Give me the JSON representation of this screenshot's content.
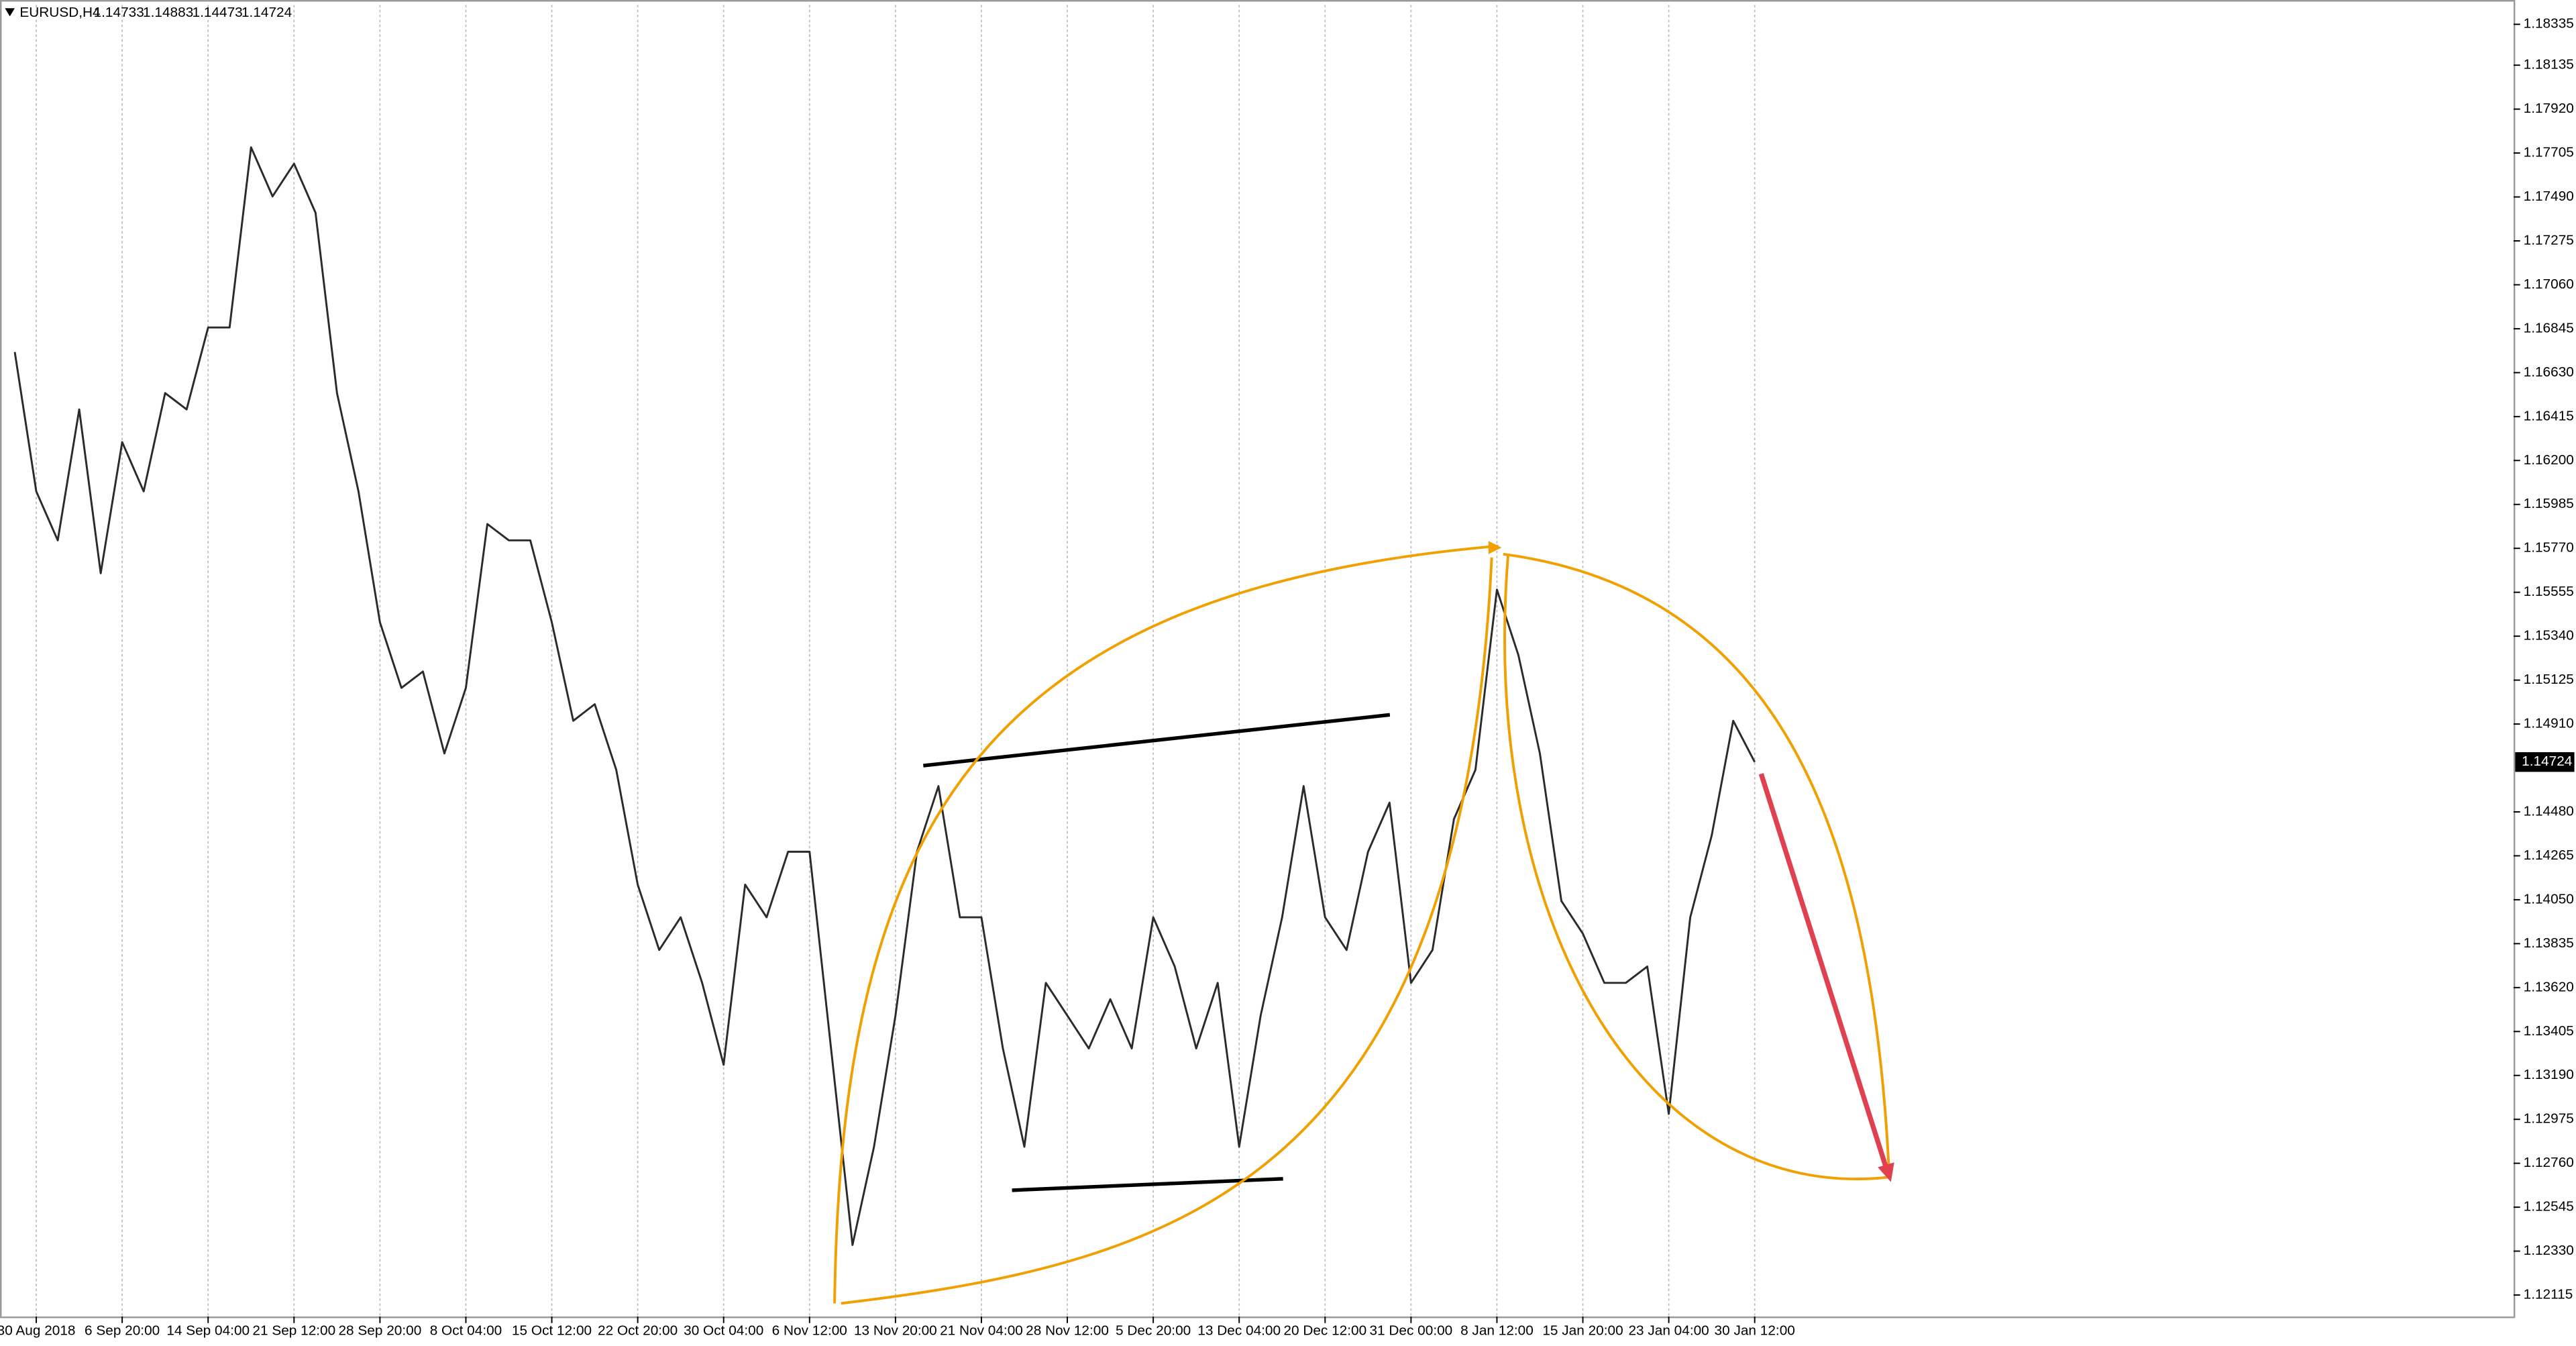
{
  "chart_data": {
    "type": "line",
    "title": "EURUSD,H4",
    "quote": [
      1.14733,
      1.14883,
      1.14473,
      1.14724
    ],
    "current_price": 1.14724,
    "current_price_color": "#000000",
    "categories": [
      null,
      "30 Aug 2018",
      null,
      null,
      null,
      "6 Sep 20:00",
      null,
      null,
      null,
      "14 Sep 04:00",
      null,
      null,
      null,
      "21 Sep 12:00",
      null,
      null,
      null,
      "28 Sep 20:00",
      null,
      null,
      null,
      "8 Oct 04:00",
      null,
      null,
      null,
      "15 Oct 12:00",
      null,
      null,
      null,
      "22 Oct 20:00",
      null,
      null,
      null,
      "30 Oct 04:00",
      null,
      null,
      null,
      "6 Nov 12:00",
      null,
      null,
      null,
      "13 Nov 20:00",
      null,
      null,
      null,
      "21 Nov 04:00",
      null,
      null,
      null,
      "28 Nov 12:00",
      null,
      null,
      null,
      "5 Dec 20:00",
      null,
      null,
      null,
      "13 Dec 04:00",
      null,
      null,
      null,
      "20 Dec 12:00",
      null,
      null,
      null,
      "31 Dec 00:00",
      null,
      null,
      null,
      "8 Jan 12:00",
      null,
      null,
      null,
      "15 Jan 20:00",
      null,
      null,
      null,
      "23 Jan 04:00",
      null,
      null,
      null,
      "30 Jan 12:00"
    ],
    "series": [
      {
        "name": "EURUSD,H4",
        "color": "#2b2b2b",
        "values": [
          1.16731,
          1.16049,
          1.15809,
          1.1645,
          1.15648,
          1.1629,
          1.16049,
          1.1653,
          1.1645,
          1.16851,
          1.16851,
          1.17733,
          1.17493,
          1.17653,
          1.17413,
          1.1653,
          1.16049,
          1.15408,
          1.15087,
          1.15167,
          1.14766,
          1.15087,
          1.15889,
          1.15809,
          1.15809,
          1.15408,
          1.14926,
          1.15007,
          1.14686,
          1.14124,
          1.13804,
          1.13964,
          1.13643,
          1.13242,
          1.14124,
          1.13964,
          1.14285,
          1.14285,
          1.13322,
          1.1236,
          1.12841,
          1.13483,
          1.14285,
          1.14606,
          1.13964,
          1.13964,
          1.13322,
          1.12841,
          1.13643,
          1.13483,
          1.13322,
          1.13563,
          1.13322,
          1.13964,
          1.13723,
          1.13322,
          1.13643,
          1.12841,
          1.13483,
          1.13964,
          1.14606,
          1.13964,
          1.13804,
          1.14285,
          1.14525,
          1.13643,
          1.13804,
          1.14445,
          1.14686,
          1.15568,
          1.15247,
          1.14766,
          1.14044,
          1.13884,
          1.13643,
          1.13643,
          1.13723,
          1.13002,
          1.13964,
          1.14365,
          1.14926,
          1.14724
        ]
      }
    ],
    "ylim": [
      1.1201,
      1.1843
    ],
    "yticks": [
      1.12115,
      {
        "value": 1.1233,
        "label": "1.12330"
      },
      1.12545,
      {
        "value": 1.1276,
        "label": "1.12760"
      },
      1.12975,
      {
        "value": 1.1319,
        "label": "1.13190"
      },
      1.13405,
      {
        "value": 1.1362,
        "label": "1.13620"
      },
      1.13835,
      {
        "value": 1.1405,
        "label": "1.14050"
      },
      1.14265,
      {
        "value": 1.1448,
        "label": "1.14480"
      },
      {
        "value": 1.1491,
        "label": "1.14910"
      },
      1.15125,
      {
        "value": 1.1534,
        "label": "1.15340"
      },
      1.15555,
      {
        "value": 1.1577,
        "label": "1.15770"
      },
      1.15985,
      {
        "value": 1.162,
        "label": "1.16200"
      },
      1.16415,
      {
        "value": 1.1663,
        "label": "1.16630"
      },
      1.16845,
      {
        "value": 1.1706,
        "label": "1.17060"
      },
      1.17275,
      {
        "value": 1.1749,
        "label": "1.17490"
      },
      1.17705,
      {
        "value": 1.1792,
        "label": "1.17920"
      },
      1.18135,
      1.18335
    ],
    "grid": true
  }
}
